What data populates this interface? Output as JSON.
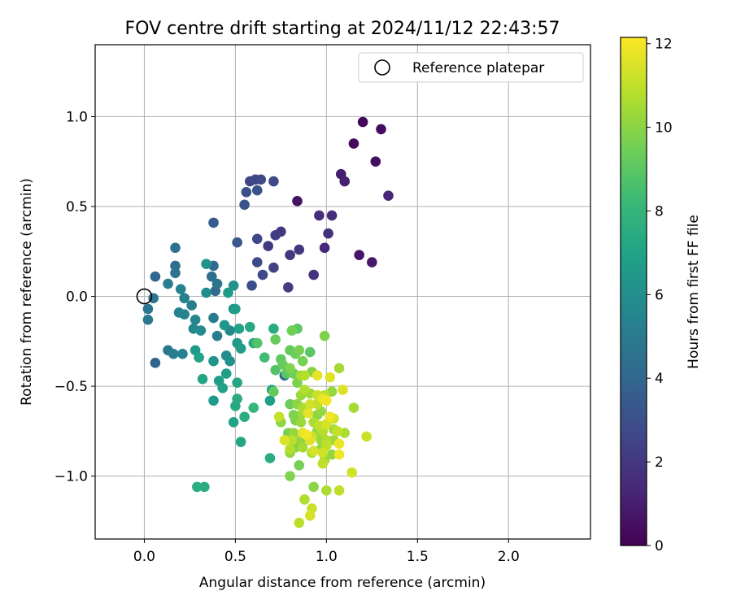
{
  "chart_data": {
    "type": "scatter",
    "title": "FOV centre drift starting at 2024/11/12 22:43:57",
    "xlabel": "Angular distance from reference (arcmin)",
    "ylabel": "Rotation from reference (arcmin)",
    "xlim": [
      -0.27,
      2.45
    ],
    "ylim": [
      -1.35,
      1.4
    ],
    "xticks": [
      0.0,
      0.5,
      1.0,
      1.5,
      2.0
    ],
    "xtick_labels": [
      "0.0",
      "0.5",
      "1.0",
      "1.5",
      "2.0"
    ],
    "yticks": [
      -1.0,
      -0.5,
      0.0,
      0.5,
      1.0
    ],
    "ytick_labels": [
      "−1.0",
      "−0.5",
      "0.0",
      "0.5",
      "1.0"
    ],
    "grid": true,
    "legend": {
      "placement": "top-right",
      "entries": [
        {
          "label": "Reference platepar",
          "marker": "open-circle"
        }
      ]
    },
    "reference_point": {
      "x": 0.0,
      "y": 0.0
    },
    "colorbar": {
      "label": "Hours from first FF file",
      "colormap": "viridis",
      "range": [
        0,
        12.15
      ],
      "ticks": [
        0,
        2,
        4,
        6,
        8,
        10,
        12
      ],
      "tick_labels": [
        "0",
        "2",
        "4",
        "6",
        "8",
        "10",
        "12"
      ]
    },
    "colormap_stops": [
      "#440154",
      "#482878",
      "#3e4989",
      "#31688e",
      "#26828e",
      "#1f9e89",
      "#35b779",
      "#6ece58",
      "#b5de2b",
      "#fde725"
    ],
    "points": [
      {
        "x": 1.2,
        "y": 0.97,
        "h": 0.2
      },
      {
        "x": 1.3,
        "y": 0.93,
        "h": 0.4
      },
      {
        "x": 1.15,
        "y": 0.85,
        "h": 0.3
      },
      {
        "x": 1.27,
        "y": 0.75,
        "h": 0.5
      },
      {
        "x": 1.08,
        "y": 0.68,
        "h": 1.0
      },
      {
        "x": 1.1,
        "y": 0.64,
        "h": 1.1
      },
      {
        "x": 1.34,
        "y": 0.56,
        "h": 1.3
      },
      {
        "x": 0.84,
        "y": 0.53,
        "h": 0.6
      },
      {
        "x": 1.18,
        "y": 0.23,
        "h": 0.7
      },
      {
        "x": 1.25,
        "y": 0.19,
        "h": 0.8
      },
      {
        "x": 0.96,
        "y": 0.45,
        "h": 1.6
      },
      {
        "x": 1.03,
        "y": 0.45,
        "h": 1.5
      },
      {
        "x": 1.01,
        "y": 0.35,
        "h": 1.7
      },
      {
        "x": 0.99,
        "y": 0.27,
        "h": 1.4
      },
      {
        "x": 0.93,
        "y": 0.12,
        "h": 1.8
      },
      {
        "x": 0.85,
        "y": 0.26,
        "h": 1.9
      },
      {
        "x": 0.8,
        "y": 0.23,
        "h": 2.0
      },
      {
        "x": 0.79,
        "y": 0.05,
        "h": 2.2
      },
      {
        "x": 0.71,
        "y": 0.16,
        "h": 2.4
      },
      {
        "x": 0.68,
        "y": 0.28,
        "h": 2.1
      },
      {
        "x": 0.72,
        "y": 0.34,
        "h": 2.3
      },
      {
        "x": 0.75,
        "y": 0.36,
        "h": 2.0
      },
      {
        "x": 0.62,
        "y": 0.32,
        "h": 2.6
      },
      {
        "x": 0.62,
        "y": 0.19,
        "h": 2.8
      },
      {
        "x": 0.65,
        "y": 0.12,
        "h": 2.7
      },
      {
        "x": 0.59,
        "y": 0.06,
        "h": 2.9
      },
      {
        "x": 0.58,
        "y": 0.64,
        "h": 2.5
      },
      {
        "x": 0.61,
        "y": 0.65,
        "h": 2.6
      },
      {
        "x": 0.64,
        "y": 0.65,
        "h": 2.7
      },
      {
        "x": 0.71,
        "y": 0.64,
        "h": 2.8
      },
      {
        "x": 0.56,
        "y": 0.58,
        "h": 3.0
      },
      {
        "x": 0.62,
        "y": 0.59,
        "h": 3.1
      },
      {
        "x": 0.55,
        "y": 0.51,
        "h": 3.2
      },
      {
        "x": 0.51,
        "y": 0.3,
        "h": 3.3
      },
      {
        "x": 0.38,
        "y": 0.41,
        "h": 3.5
      },
      {
        "x": 0.17,
        "y": 0.27,
        "h": 4.5
      },
      {
        "x": 0.17,
        "y": 0.17,
        "h": 4.4
      },
      {
        "x": 0.17,
        "y": 0.13,
        "h": 4.6
      },
      {
        "x": 0.06,
        "y": 0.11,
        "h": 4.0
      },
      {
        "x": 0.13,
        "y": 0.07,
        "h": 5.2
      },
      {
        "x": 0.2,
        "y": 0.04,
        "h": 5.4
      },
      {
        "x": 0.05,
        "y": -0.01,
        "h": 4.7
      },
      {
        "x": 0.02,
        "y": -0.07,
        "h": 4.8
      },
      {
        "x": 0.02,
        "y": -0.13,
        "h": 4.9
      },
      {
        "x": 0.22,
        "y": -0.01,
        "h": 5.3
      },
      {
        "x": 0.26,
        "y": -0.05,
        "h": 5.2
      },
      {
        "x": 0.19,
        "y": -0.09,
        "h": 5.5
      },
      {
        "x": 0.22,
        "y": -0.1,
        "h": 5.4
      },
      {
        "x": 0.28,
        "y": -0.13,
        "h": 5.6
      },
      {
        "x": 0.27,
        "y": -0.18,
        "h": 5.7
      },
      {
        "x": 0.31,
        "y": -0.19,
        "h": 5.8
      },
      {
        "x": 0.38,
        "y": -0.12,
        "h": 5.0
      },
      {
        "x": 0.4,
        "y": -0.22,
        "h": 5.1
      },
      {
        "x": 0.37,
        "y": 0.11,
        "h": 4.5
      },
      {
        "x": 0.38,
        "y": 0.17,
        "h": 4.3
      },
      {
        "x": 0.39,
        "y": 0.03,
        "h": 4.2
      },
      {
        "x": 0.4,
        "y": 0.07,
        "h": 4.8
      },
      {
        "x": 0.34,
        "y": 0.02,
        "h": 5.9
      },
      {
        "x": 0.34,
        "y": 0.18,
        "h": 6.2
      },
      {
        "x": 0.46,
        "y": 0.02,
        "h": 6.6
      },
      {
        "x": 0.49,
        "y": 0.06,
        "h": 6.1
      },
      {
        "x": 0.49,
        "y": -0.07,
        "h": 5.9
      },
      {
        "x": 0.5,
        "y": -0.07,
        "h": 6.7
      },
      {
        "x": 0.44,
        "y": -0.16,
        "h": 6.4
      },
      {
        "x": 0.47,
        "y": -0.19,
        "h": 5.7
      },
      {
        "x": 0.52,
        "y": -0.18,
        "h": 6.9
      },
      {
        "x": 0.58,
        "y": -0.17,
        "h": 7.3
      },
      {
        "x": 0.51,
        "y": -0.26,
        "h": 6.6
      },
      {
        "x": 0.53,
        "y": -0.29,
        "h": 6.8
      },
      {
        "x": 0.45,
        "y": -0.33,
        "h": 5.9
      },
      {
        "x": 0.47,
        "y": -0.36,
        "h": 6.1
      },
      {
        "x": 0.6,
        "y": -0.26,
        "h": 7.4
      },
      {
        "x": 0.62,
        "y": -0.26,
        "h": 8.8
      },
      {
        "x": 0.66,
        "y": -0.34,
        "h": 8.4
      },
      {
        "x": 0.38,
        "y": -0.36,
        "h": 6.3
      },
      {
        "x": 0.45,
        "y": -0.43,
        "h": 6.8
      },
      {
        "x": 0.13,
        "y": -0.3,
        "h": 4.9
      },
      {
        "x": 0.16,
        "y": -0.32,
        "h": 5.1
      },
      {
        "x": 0.21,
        "y": -0.32,
        "h": 5.3
      },
      {
        "x": 0.06,
        "y": -0.37,
        "h": 3.9
      },
      {
        "x": 0.28,
        "y": -0.3,
        "h": 6.6
      },
      {
        "x": 0.3,
        "y": -0.34,
        "h": 7.0
      },
      {
        "x": 0.41,
        "y": -0.47,
        "h": 6.7
      },
      {
        "x": 0.43,
        "y": -0.51,
        "h": 6.9
      },
      {
        "x": 0.32,
        "y": -0.46,
        "h": 7.1
      },
      {
        "x": 0.51,
        "y": -0.48,
        "h": 7.2
      },
      {
        "x": 0.38,
        "y": -0.58,
        "h": 6.5
      },
      {
        "x": 0.51,
        "y": -0.57,
        "h": 7.4
      },
      {
        "x": 0.5,
        "y": -0.61,
        "h": 7.3
      },
      {
        "x": 0.49,
        "y": -0.7,
        "h": 7.0
      },
      {
        "x": 0.55,
        "y": -0.67,
        "h": 7.5
      },
      {
        "x": 0.6,
        "y": -0.62,
        "h": 8.1
      },
      {
        "x": 0.53,
        "y": -0.81,
        "h": 7.1
      },
      {
        "x": 0.7,
        "y": -0.52,
        "h": 7.0
      },
      {
        "x": 0.69,
        "y": -0.58,
        "h": 6.8
      },
      {
        "x": 0.69,
        "y": -0.9,
        "h": 7.5
      },
      {
        "x": 0.29,
        "y": -1.06,
        "h": 7.6
      },
      {
        "x": 0.33,
        "y": -1.06,
        "h": 7.5
      },
      {
        "x": 0.77,
        "y": -0.44,
        "h": 4.0
      },
      {
        "x": 0.71,
        "y": -0.53,
        "h": 9.2
      },
      {
        "x": 0.71,
        "y": -0.18,
        "h": 7.4
      },
      {
        "x": 0.72,
        "y": -0.24,
        "h": 9.3
      },
      {
        "x": 0.81,
        "y": -0.19,
        "h": 9.5
      },
      {
        "x": 0.84,
        "y": -0.18,
        "h": 9.0
      },
      {
        "x": 0.8,
        "y": -0.3,
        "h": 9.2
      },
      {
        "x": 0.83,
        "y": -0.32,
        "h": 9.4
      },
      {
        "x": 0.85,
        "y": -0.3,
        "h": 9.6
      },
      {
        "x": 0.91,
        "y": -0.31,
        "h": 9.0
      },
      {
        "x": 0.99,
        "y": -0.22,
        "h": 9.8
      },
      {
        "x": 0.75,
        "y": -0.35,
        "h": 9.1
      },
      {
        "x": 0.76,
        "y": -0.38,
        "h": 9.3
      },
      {
        "x": 0.8,
        "y": -0.4,
        "h": 9.8
      },
      {
        "x": 0.87,
        "y": -0.36,
        "h": 9.6
      },
      {
        "x": 0.72,
        "y": -0.41,
        "h": 8.8
      },
      {
        "x": 0.78,
        "y": -0.43,
        "h": 9.0
      },
      {
        "x": 0.82,
        "y": -0.43,
        "h": 9.4
      },
      {
        "x": 0.86,
        "y": -0.44,
        "h": 10.5
      },
      {
        "x": 0.88,
        "y": -0.44,
        "h": 10.8
      },
      {
        "x": 0.92,
        "y": -0.42,
        "h": 9.9
      },
      {
        "x": 0.95,
        "y": -0.44,
        "h": 11.7
      },
      {
        "x": 1.02,
        "y": -0.45,
        "h": 11.6
      },
      {
        "x": 1.07,
        "y": -0.4,
        "h": 10.5
      },
      {
        "x": 0.84,
        "y": -0.48,
        "h": 9.7
      },
      {
        "x": 0.88,
        "y": -0.52,
        "h": 10.7
      },
      {
        "x": 0.86,
        "y": -0.55,
        "h": 10.3
      },
      {
        "x": 0.91,
        "y": -0.54,
        "h": 10.4
      },
      {
        "x": 0.95,
        "y": -0.55,
        "h": 11.2
      },
      {
        "x": 0.99,
        "y": -0.55,
        "h": 10.9
      },
      {
        "x": 1.0,
        "y": -0.58,
        "h": 11.9
      },
      {
        "x": 1.03,
        "y": -0.53,
        "h": 10.2
      },
      {
        "x": 1.09,
        "y": -0.52,
        "h": 11.5
      },
      {
        "x": 0.84,
        "y": -0.6,
        "h": 10.0
      },
      {
        "x": 0.87,
        "y": -0.62,
        "h": 10.6
      },
      {
        "x": 0.91,
        "y": -0.6,
        "h": 11.3
      },
      {
        "x": 0.95,
        "y": -0.6,
        "h": 11.0
      },
      {
        "x": 0.98,
        "y": -0.57,
        "h": 11.8
      },
      {
        "x": 0.8,
        "y": -0.6,
        "h": 9.4
      },
      {
        "x": 0.82,
        "y": -0.66,
        "h": 9.8
      },
      {
        "x": 0.87,
        "y": -0.65,
        "h": 10.4
      },
      {
        "x": 0.9,
        "y": -0.65,
        "h": 11.6
      },
      {
        "x": 0.95,
        "y": -0.66,
        "h": 10.0
      },
      {
        "x": 0.97,
        "y": -0.64,
        "h": 10.2
      },
      {
        "x": 1.02,
        "y": -0.67,
        "h": 11.9
      },
      {
        "x": 1.04,
        "y": -0.68,
        "h": 11.3
      },
      {
        "x": 1.15,
        "y": -0.62,
        "h": 10.5
      },
      {
        "x": 0.74,
        "y": -0.67,
        "h": 11.1
      },
      {
        "x": 0.75,
        "y": -0.7,
        "h": 10.0
      },
      {
        "x": 0.83,
        "y": -0.69,
        "h": 9.7
      },
      {
        "x": 0.86,
        "y": -0.7,
        "h": 10.3
      },
      {
        "x": 0.93,
        "y": -0.7,
        "h": 10.6
      },
      {
        "x": 0.96,
        "y": -0.72,
        "h": 11.0
      },
      {
        "x": 1.0,
        "y": -0.71,
        "h": 11.4
      },
      {
        "x": 0.79,
        "y": -0.76,
        "h": 9.6
      },
      {
        "x": 0.82,
        "y": -0.76,
        "h": 10.2
      },
      {
        "x": 0.87,
        "y": -0.76,
        "h": 11.7
      },
      {
        "x": 0.89,
        "y": -0.77,
        "h": 11.9
      },
      {
        "x": 0.92,
        "y": -0.78,
        "h": 11.2
      },
      {
        "x": 0.95,
        "y": -0.75,
        "h": 10.1
      },
      {
        "x": 0.98,
        "y": -0.75,
        "h": 10.8
      },
      {
        "x": 1.04,
        "y": -0.74,
        "h": 10.4
      },
      {
        "x": 1.06,
        "y": -0.75,
        "h": 11.1
      },
      {
        "x": 1.1,
        "y": -0.76,
        "h": 10.6
      },
      {
        "x": 1.22,
        "y": -0.78,
        "h": 11.2
      },
      {
        "x": 0.77,
        "y": -0.8,
        "h": 11.5
      },
      {
        "x": 0.81,
        "y": -0.8,
        "h": 10.9
      },
      {
        "x": 0.86,
        "y": -0.8,
        "h": 10.1
      },
      {
        "x": 0.91,
        "y": -0.8,
        "h": 11.6
      },
      {
        "x": 0.97,
        "y": -0.8,
        "h": 10.3
      },
      {
        "x": 1.0,
        "y": -0.8,
        "h": 10.7
      },
      {
        "x": 1.04,
        "y": -0.8,
        "h": 10.4
      },
      {
        "x": 1.07,
        "y": -0.82,
        "h": 11.8
      },
      {
        "x": 0.8,
        "y": -0.85,
        "h": 10.8
      },
      {
        "x": 0.83,
        "y": -0.84,
        "h": 9.9
      },
      {
        "x": 0.87,
        "y": -0.84,
        "h": 10.5
      },
      {
        "x": 0.93,
        "y": -0.86,
        "h": 11.4
      },
      {
        "x": 0.97,
        "y": -0.85,
        "h": 10.0
      },
      {
        "x": 1.0,
        "y": -0.83,
        "h": 11.0
      },
      {
        "x": 0.8,
        "y": -0.87,
        "h": 10.2
      },
      {
        "x": 0.92,
        "y": -0.87,
        "h": 10.6
      },
      {
        "x": 0.98,
        "y": -0.87,
        "h": 11.3
      },
      {
        "x": 1.03,
        "y": -0.88,
        "h": 10.1
      },
      {
        "x": 1.07,
        "y": -0.88,
        "h": 11.9
      },
      {
        "x": 0.85,
        "y": -0.94,
        "h": 9.6
      },
      {
        "x": 0.98,
        "y": -0.93,
        "h": 11.0
      },
      {
        "x": 0.99,
        "y": -0.91,
        "h": 10.4
      },
      {
        "x": 1.14,
        "y": -0.98,
        "h": 11.3
      },
      {
        "x": 0.8,
        "y": -1.0,
        "h": 9.8
      },
      {
        "x": 0.93,
        "y": -1.06,
        "h": 10.0
      },
      {
        "x": 1.0,
        "y": -1.08,
        "h": 10.6
      },
      {
        "x": 1.07,
        "y": -1.08,
        "h": 11.0
      },
      {
        "x": 0.88,
        "y": -1.13,
        "h": 10.7
      },
      {
        "x": 0.92,
        "y": -1.18,
        "h": 11.2
      },
      {
        "x": 0.91,
        "y": -1.22,
        "h": 11.4
      },
      {
        "x": 0.85,
        "y": -1.26,
        "h": 10.9
      }
    ]
  }
}
